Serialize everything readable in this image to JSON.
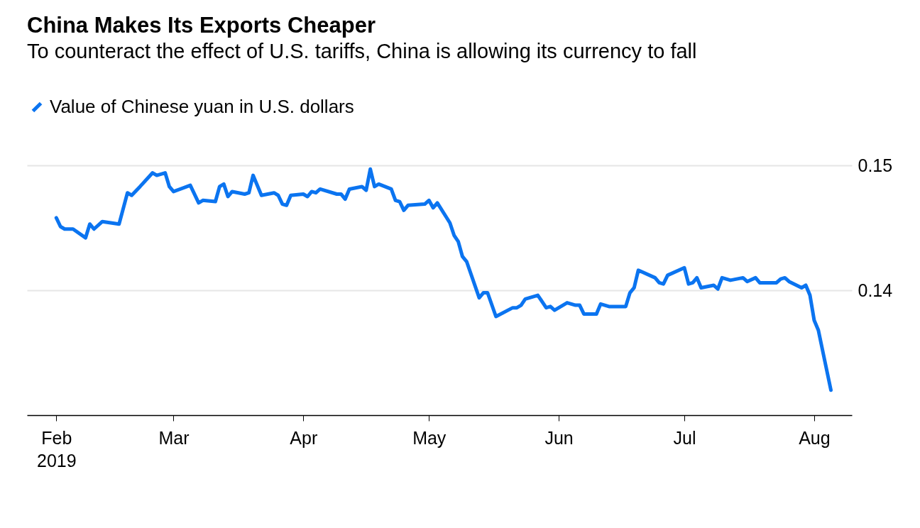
{
  "chart_data": {
    "type": "line",
    "title": "China Makes Its Exports Cheaper",
    "subtitle": "To counteract the effect of U.S. tariffs, China is allowing its currency to fall",
    "x": [
      "2019-02-01",
      "2019-02-02",
      "2019-02-03",
      "2019-02-05",
      "2019-02-08",
      "2019-02-09",
      "2019-02-10",
      "2019-02-12",
      "2019-02-16",
      "2019-02-18",
      "2019-02-19",
      "2019-02-21",
      "2019-02-24",
      "2019-02-25",
      "2019-02-27",
      "2019-02-28",
      "2019-03-01",
      "2019-03-05",
      "2019-03-07",
      "2019-03-08",
      "2019-03-11",
      "2019-03-12",
      "2019-03-13",
      "2019-03-14",
      "2019-03-15",
      "2019-03-18",
      "2019-03-19",
      "2019-03-20",
      "2019-03-22",
      "2019-03-25",
      "2019-03-26",
      "2019-03-27",
      "2019-03-28",
      "2019-03-29",
      "2019-04-01",
      "2019-04-02",
      "2019-04-03",
      "2019-04-04",
      "2019-04-05",
      "2019-04-09",
      "2019-04-10",
      "2019-04-11",
      "2019-04-12",
      "2019-04-15",
      "2019-04-16",
      "2019-04-17",
      "2019-04-18",
      "2019-04-19",
      "2019-04-22",
      "2019-04-23",
      "2019-04-24",
      "2019-04-25",
      "2019-04-26",
      "2019-04-30",
      "2019-05-01",
      "2019-05-02",
      "2019-05-03",
      "2019-05-06",
      "2019-05-07",
      "2019-05-08",
      "2019-05-09",
      "2019-05-10",
      "2019-05-13",
      "2019-05-14",
      "2019-05-15",
      "2019-05-17",
      "2019-05-21",
      "2019-05-22",
      "2019-05-23",
      "2019-05-24",
      "2019-05-27",
      "2019-05-29",
      "2019-05-30",
      "2019-05-31",
      "2019-06-03",
      "2019-06-05",
      "2019-06-06",
      "2019-06-07",
      "2019-06-10",
      "2019-06-11",
      "2019-06-13",
      "2019-06-17",
      "2019-06-18",
      "2019-06-19",
      "2019-06-20",
      "2019-06-24",
      "2019-06-25",
      "2019-06-26",
      "2019-06-27",
      "2019-07-01",
      "2019-07-02",
      "2019-07-03",
      "2019-07-04",
      "2019-07-05",
      "2019-07-08",
      "2019-07-09",
      "2019-07-10",
      "2019-07-12",
      "2019-07-15",
      "2019-07-16",
      "2019-07-18",
      "2019-07-19",
      "2019-07-23",
      "2019-07-24",
      "2019-07-25",
      "2019-07-26",
      "2019-07-29",
      "2019-07-30",
      "2019-07-31",
      "2019-08-01",
      "2019-08-02",
      "2019-08-05"
    ],
    "series": [
      {
        "name": "Value of Chinese yuan in U.S. dollars",
        "color": "#0b74f0",
        "values": [
          0.1458,
          0.1451,
          0.1449,
          0.1449,
          0.1442,
          0.1453,
          0.1449,
          0.1455,
          0.1453,
          0.1478,
          0.1476,
          0.1483,
          0.1494,
          0.1492,
          0.1494,
          0.1483,
          0.1479,
          0.1484,
          0.147,
          0.1472,
          0.1471,
          0.1483,
          0.1485,
          0.1475,
          0.1479,
          0.1477,
          0.1478,
          0.1492,
          0.1476,
          0.1478,
          0.1476,
          0.1469,
          0.1468,
          0.1476,
          0.1477,
          0.1475,
          0.1479,
          0.1478,
          0.1481,
          0.1477,
          0.1477,
          0.1473,
          0.1481,
          0.1483,
          0.148,
          0.1497,
          0.1483,
          0.1485,
          0.1481,
          0.1472,
          0.1471,
          0.1464,
          0.1468,
          0.1469,
          0.1472,
          0.1466,
          0.147,
          0.1454,
          0.1444,
          0.1439,
          0.1427,
          0.1423,
          0.1394,
          0.1398,
          0.1398,
          0.1379,
          0.1386,
          0.1386,
          0.1388,
          0.1393,
          0.1396,
          0.1386,
          0.1387,
          0.1384,
          0.139,
          0.1388,
          0.1388,
          0.1381,
          0.1381,
          0.1389,
          0.1387,
          0.1387,
          0.1398,
          0.1402,
          0.1416,
          0.141,
          0.1406,
          0.1405,
          0.1412,
          0.1418,
          0.1405,
          0.1406,
          0.141,
          0.1402,
          0.1404,
          0.1401,
          0.141,
          0.1408,
          0.141,
          0.1407,
          0.141,
          0.1406,
          0.1406,
          0.1409,
          0.141,
          0.1407,
          0.1402,
          0.1404,
          0.1396,
          0.1376,
          0.1368,
          0.132
        ]
      }
    ],
    "xlim": [
      "2019-01-25",
      "2019-08-10"
    ],
    "xticks": [
      {
        "value": "2019-02-01",
        "label": "Feb 2019"
      },
      {
        "value": "2019-03-01",
        "label": "Mar"
      },
      {
        "value": "2019-04-01",
        "label": "Apr"
      },
      {
        "value": "2019-05-01",
        "label": "May"
      },
      {
        "value": "2019-06-01",
        "label": "Jun"
      },
      {
        "value": "2019-07-01",
        "label": "Jul"
      },
      {
        "value": "2019-08-01",
        "label": "Aug"
      }
    ],
    "ylim": [
      0.13,
      0.15
    ],
    "yticks": [
      0.14,
      0.15
    ],
    "grid": "y",
    "legend": "top left",
    "marker": "none",
    "line_style": "solid"
  }
}
